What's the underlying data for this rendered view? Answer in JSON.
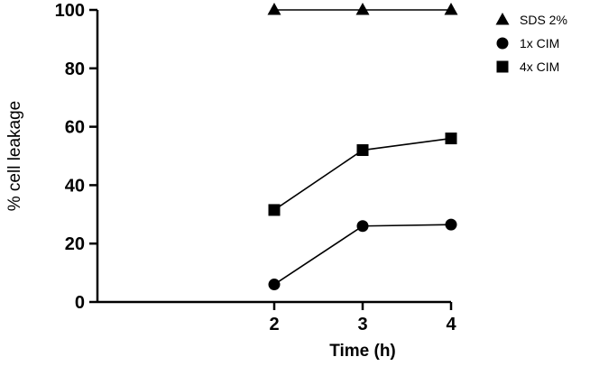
{
  "chart_data": {
    "type": "line",
    "title": "",
    "xlabel": "Time (h)",
    "ylabel": "% cell leakage",
    "x": [
      2,
      3,
      4
    ],
    "x_ticks": [
      "2",
      "3",
      "4"
    ],
    "xlim": [
      0,
      4
    ],
    "ylim": [
      0,
      100
    ],
    "y_ticks": [
      "0",
      "20",
      "40",
      "60",
      "80",
      "100"
    ],
    "grid": false,
    "legend_position": "top-right",
    "colors": {
      "line": "#000000",
      "marker": "#000000"
    },
    "series": [
      {
        "name": "SDS 2%",
        "marker": "triangle",
        "values": [
          100,
          100,
          100
        ]
      },
      {
        "name": "1x CIM",
        "marker": "circle",
        "values": [
          6,
          26,
          26.5
        ]
      },
      {
        "name": "4x CIM",
        "marker": "square",
        "values": [
          31.5,
          52,
          56
        ]
      }
    ]
  }
}
